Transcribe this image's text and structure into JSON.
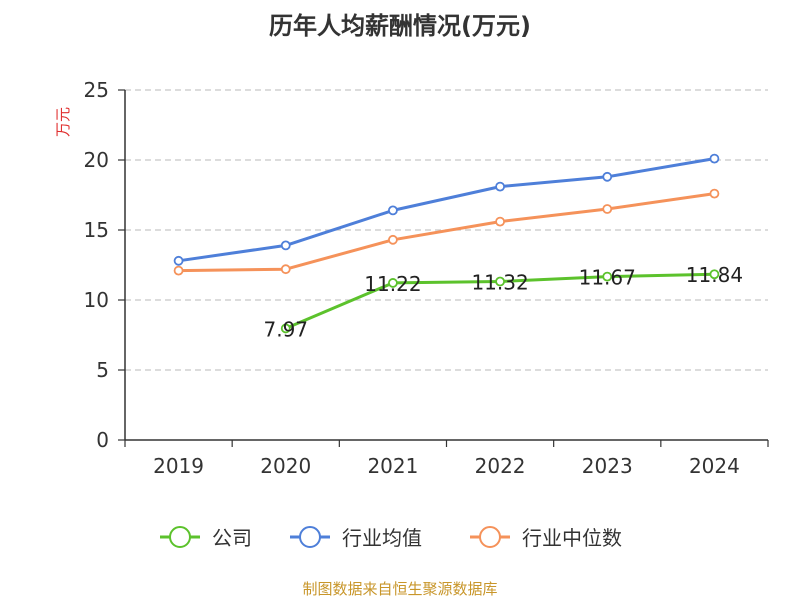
{
  "chart_data": {
    "type": "line",
    "title": "历年人均薪酬情况(万元)",
    "ylabel": "万元",
    "xlabel": "",
    "categories": [
      "2019",
      "2020",
      "2021",
      "2022",
      "2023",
      "2024"
    ],
    "ylim": [
      0,
      25
    ],
    "yticks": [
      "0",
      "5",
      "10",
      "15",
      "20",
      "25"
    ],
    "grid": true,
    "legend_position": "bottom",
    "series": [
      {
        "name": "公司",
        "color": "#5cc22c",
        "values": [
          null,
          7.97,
          11.22,
          11.32,
          11.67,
          11.84
        ],
        "labels": [
          "",
          "7.97",
          "11.22",
          "11.32",
          "11.67",
          "11.84"
        ]
      },
      {
        "name": "行业均值",
        "color": "#4e7fd9",
        "values": [
          12.8,
          13.9,
          16.4,
          18.1,
          18.8,
          20.1
        ],
        "labels": [
          "",
          "",
          "",
          "",
          "",
          ""
        ]
      },
      {
        "name": "行业中位数",
        "color": "#f5925a",
        "values": [
          12.1,
          12.2,
          14.3,
          15.6,
          16.5,
          17.6
        ],
        "labels": [
          "",
          "",
          "",
          "",
          "",
          ""
        ]
      }
    ]
  },
  "footer": {
    "source": "制图数据来自恒生聚源数据库"
  },
  "colors": {
    "axis": "#333333",
    "grid": "#c8c8c8",
    "unit": "#e03030"
  }
}
